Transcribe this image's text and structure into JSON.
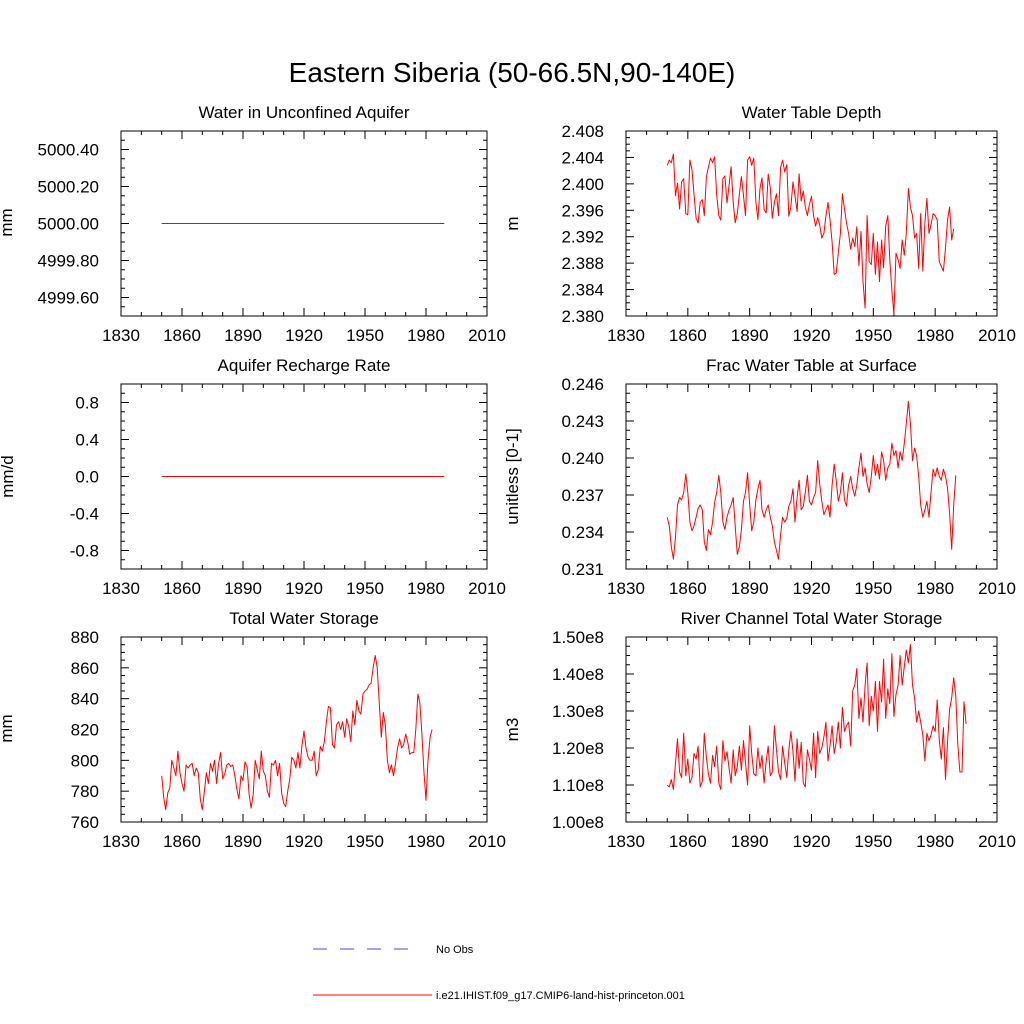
{
  "title": "Eastern Siberia (50-66.5N,90-140E)",
  "legend": {
    "obs_label": "No Obs",
    "obs_color": "#4a4ad0",
    "model_label": "i.e21.IHIST.f09_g17.CMIP6-land-hist-princeton.001",
    "model_color": "#ff0000"
  },
  "chart_data": [
    {
      "type": "line",
      "title": "Water in Unconfined Aquifer",
      "ylabel": "mm",
      "xlim": [
        1830,
        2010
      ],
      "xticks": [
        "1830",
        "1860",
        "1890",
        "1920",
        "1950",
        "1980",
        "2010"
      ],
      "ylim": [
        4999.5,
        5000.5
      ],
      "yticks": [
        "4999.60",
        "4999.80",
        "5000.00",
        "5000.20",
        "5000.40"
      ],
      "x_start": 1850,
      "series": [
        {
          "values": [
            5000.0,
            5000.0,
            5000.0,
            5000.0,
            5000.0,
            5000.0,
            5000.0,
            5000.0,
            5000.0,
            5000.0,
            5000.0,
            5000.0,
            5000.0,
            5000.0,
            5000.0,
            5000.0,
            5000.0,
            5000.0,
            5000.0,
            5000.0,
            5000.0,
            5000.0,
            5000.0,
            5000.0,
            5000.0,
            5000.0,
            5000.0,
            5000.0,
            5000.0,
            5000.0,
            5000.0,
            5000.0,
            5000.0,
            5000.0,
            5000.0,
            5000.0,
            5000.0,
            5000.0,
            5000.0,
            5000.0,
            5000.0,
            5000.0,
            5000.0,
            5000.0,
            5000.0,
            5000.0,
            5000.0,
            5000.0,
            5000.0,
            5000.0,
            5000.0,
            5000.0,
            5000.0,
            5000.0,
            5000.0,
            5000.0,
            5000.0,
            5000.0,
            5000.0,
            5000.0,
            5000.0,
            5000.0,
            5000.0,
            5000.0,
            5000.0,
            5000.0,
            5000.0,
            5000.0,
            5000.0,
            5000.0,
            5000.0,
            5000.0,
            5000.0,
            5000.0,
            5000.0,
            5000.0,
            5000.0,
            5000.0,
            5000.0,
            5000.0,
            5000.0,
            5000.0,
            5000.0,
            5000.0,
            5000.0,
            5000.0,
            5000.0,
            5000.0,
            5000.0,
            5000.0,
            5000.0,
            5000.0,
            5000.0,
            5000.0,
            5000.0,
            5000.0,
            5000.0,
            5000.0,
            5000.0,
            5000.0,
            5000.0,
            5000.0,
            5000.0,
            5000.0,
            5000.0,
            5000.0,
            5000.0,
            5000.0,
            5000.0,
            5000.0,
            5000.0,
            5000.0,
            5000.0,
            5000.0,
            5000.0,
            5000.0,
            5000.0,
            5000.0,
            5000.0,
            5000.0,
            5000.0,
            5000.0,
            5000.0,
            5000.0,
            5000.0,
            5000.0,
            5000.0,
            5000.0,
            5000.0,
            5000.0,
            5000.0,
            5000.0,
            5000.0,
            5000.0,
            5000.0,
            5000.0,
            5000.0,
            5000.0,
            5000.0,
            5000.0
          ]
        }
      ]
    },
    {
      "type": "line",
      "title": "Water Table Depth",
      "ylabel": "m",
      "xlim": [
        1830,
        2010
      ],
      "xticks": [
        "1830",
        "1860",
        "1890",
        "1920",
        "1950",
        "1980",
        "2010"
      ],
      "ylim": [
        2.38,
        2.408
      ],
      "yticks": [
        "2.380",
        "2.384",
        "2.388",
        "2.392",
        "2.396",
        "2.400",
        "2.404",
        "2.408"
      ],
      "x_start": 1850,
      "series": [
        {
          "values": [
            2.4028,
            2.4036,
            2.4032,
            2.4045,
            2.3982,
            2.4001,
            2.3962,
            2.4003,
            2.4008,
            2.3955,
            2.3953,
            2.4036,
            2.4021,
            2.3985,
            2.3948,
            2.3941,
            2.3972,
            2.3976,
            2.3952,
            2.4011,
            2.4025,
            2.4039,
            2.4032,
            2.4041,
            2.3983,
            2.3952,
            2.3945,
            2.4008,
            2.4012,
            2.3971,
            2.3998,
            2.4026,
            2.3972,
            2.3941,
            2.3955,
            2.3985,
            2.4011,
            2.3982,
            2.3952,
            2.4036,
            2.4041,
            2.4028,
            2.4039,
            2.3972,
            2.3946,
            2.3993,
            2.4009,
            2.3961,
            2.3956,
            2.4015,
            2.3994,
            2.3948,
            2.3972,
            2.3985,
            2.3952,
            2.4025,
            2.4036,
            2.4018,
            2.4029,
            2.3951,
            2.3966,
            2.4003,
            2.3982,
            2.3958,
            2.4015,
            2.3974,
            2.3989,
            2.3965,
            2.3952,
            2.3969,
            2.3981,
            2.3952,
            2.3936,
            2.3949,
            2.3938,
            2.3918,
            2.3925,
            2.3951,
            2.3972,
            2.3946,
            2.3912,
            2.3863,
            2.3865,
            2.3895,
            2.3925,
            2.3985,
            2.3962,
            2.3941,
            2.3925,
            2.3901,
            2.3918,
            2.3905,
            2.3935,
            2.3876,
            2.3928,
            2.3852,
            2.3812,
            2.3952,
            2.3882,
            2.3878,
            2.3925,
            2.3863,
            2.3912,
            2.3852,
            2.3915,
            2.3873,
            2.3936,
            2.3952,
            2.3885,
            2.3838,
            2.3803,
            2.3895,
            2.3885,
            2.3872,
            2.3915,
            2.3892,
            2.3925,
            2.3993,
            2.3965,
            2.3952,
            2.3918,
            2.3925,
            2.3872,
            2.3955,
            2.3868,
            2.3942,
            2.3978,
            2.3925,
            2.3938,
            2.3955,
            2.3952,
            2.3945,
            2.3882,
            2.3875,
            2.3868,
            2.3903,
            2.3945,
            2.3965,
            2.3915,
            2.3932
          ]
        }
      ]
    },
    {
      "type": "line",
      "title": "Aquifer Recharge Rate",
      "ylabel": "mm/d",
      "xlim": [
        1830,
        2010
      ],
      "xticks": [
        "1830",
        "1860",
        "1890",
        "1920",
        "1950",
        "1980",
        "2010"
      ],
      "ylim": [
        -1.0,
        1.0
      ],
      "yticks": [
        "-0.8",
        "-0.4",
        "0.0",
        "0.4",
        "0.8"
      ],
      "x_start": 1850,
      "series": [
        {
          "values": [
            0,
            0,
            0,
            0,
            0,
            0,
            0,
            0,
            0,
            0,
            0,
            0,
            0,
            0,
            0,
            0,
            0,
            0,
            0,
            0,
            0,
            0,
            0,
            0,
            0,
            0,
            0,
            0,
            0,
            0,
            0,
            0,
            0,
            0,
            0,
            0,
            0,
            0,
            0,
            0,
            0,
            0,
            0,
            0,
            0,
            0,
            0,
            0,
            0,
            0,
            0,
            0,
            0,
            0,
            0,
            0,
            0,
            0,
            0,
            0,
            0,
            0,
            0,
            0,
            0,
            0,
            0,
            0,
            0,
            0,
            0,
            0,
            0,
            0,
            0,
            0,
            0,
            0,
            0,
            0,
            0,
            0,
            0,
            0,
            0,
            0,
            0,
            0,
            0,
            0,
            0,
            0,
            0,
            0,
            0,
            0,
            0,
            0,
            0,
            0,
            0,
            0,
            0,
            0,
            0,
            0,
            0,
            0,
            0,
            0,
            0,
            0,
            0,
            0,
            0,
            0,
            0,
            0,
            0,
            0,
            0,
            0,
            0,
            0,
            0,
            0,
            0,
            0,
            0,
            0,
            0,
            0,
            0,
            0,
            0,
            0,
            0,
            0,
            0,
            0
          ]
        }
      ]
    },
    {
      "type": "line",
      "title": "Frac Water Table at Surface",
      "ylabel": "unitless [0-1]",
      "xlim": [
        1830,
        2010
      ],
      "xticks": [
        "1830",
        "1860",
        "1890",
        "1920",
        "1950",
        "1980",
        "2010"
      ],
      "ylim": [
        0.231,
        0.246
      ],
      "yticks": [
        "0.231",
        "0.234",
        "0.237",
        "0.240",
        "0.243",
        "0.246"
      ],
      "x_start": 1850,
      "series": [
        {
          "values": [
            0.2352,
            0.2345,
            0.2328,
            0.2318,
            0.2336,
            0.2362,
            0.2368,
            0.2366,
            0.2372,
            0.2387,
            0.2372,
            0.2348,
            0.2341,
            0.2345,
            0.2352,
            0.2359,
            0.2362,
            0.2358,
            0.2332,
            0.2325,
            0.2342,
            0.2338,
            0.2348,
            0.2364,
            0.2372,
            0.2386,
            0.2372,
            0.2348,
            0.2342,
            0.2352,
            0.2358,
            0.2362,
            0.2368,
            0.2345,
            0.2322,
            0.2328,
            0.2342,
            0.2365,
            0.2372,
            0.2388,
            0.2362,
            0.2341,
            0.2348,
            0.2366,
            0.2375,
            0.2382,
            0.2358,
            0.2352,
            0.2358,
            0.2362,
            0.2352,
            0.2345,
            0.2332,
            0.2325,
            0.2318,
            0.2338,
            0.2352,
            0.2348,
            0.2351,
            0.2361,
            0.2365,
            0.2375,
            0.2348,
            0.2368,
            0.2382,
            0.2358,
            0.2361,
            0.2372,
            0.2386,
            0.2365,
            0.2362,
            0.2368,
            0.2372,
            0.2398,
            0.2379,
            0.2365,
            0.2354,
            0.2358,
            0.2362,
            0.2352,
            0.2378,
            0.2395,
            0.2382,
            0.2365,
            0.2372,
            0.2388,
            0.2366,
            0.2361,
            0.2378,
            0.2385,
            0.2375,
            0.2369,
            0.2378,
            0.2392,
            0.2404,
            0.2385,
            0.2392,
            0.2379,
            0.2372,
            0.2385,
            0.2402,
            0.2386,
            0.2395,
            0.2383,
            0.2405,
            0.2398,
            0.2382,
            0.2392,
            0.2395,
            0.2412,
            0.2402,
            0.2406,
            0.2392,
            0.2405,
            0.2398,
            0.2412,
            0.2428,
            0.2446,
            0.2428,
            0.2398,
            0.2408,
            0.2402,
            0.2385,
            0.2362,
            0.2352,
            0.2358,
            0.2365,
            0.2352,
            0.2372,
            0.2391,
            0.2385,
            0.2392,
            0.2385,
            0.2382,
            0.2391,
            0.2385,
            0.2376,
            0.2355,
            0.2326,
            0.2362,
            0.2386
          ]
        }
      ]
    },
    {
      "type": "line",
      "title": "Total Water Storage",
      "ylabel": "mm",
      "xlim": [
        1830,
        2010
      ],
      "xticks": [
        "1830",
        "1860",
        "1890",
        "1920",
        "1950",
        "1980",
        "2010"
      ],
      "ylim": [
        760,
        880
      ],
      "yticks": [
        "760",
        "780",
        "800",
        "820",
        "840",
        "860",
        "880"
      ],
      "x_start": 1850,
      "series": [
        {
          "values": [
            790,
            776,
            768,
            779,
            782,
            800,
            795,
            790,
            806,
            792,
            785,
            780,
            797,
            795,
            797,
            798,
            790,
            795,
            792,
            775,
            768,
            780,
            792,
            785,
            798,
            793,
            800,
            785,
            798,
            805,
            788,
            791,
            797,
            798,
            796,
            797,
            790,
            781,
            775,
            790,
            787,
            799,
            796,
            778,
            769,
            778,
            800,
            794,
            788,
            806,
            793,
            790,
            780,
            776,
            798,
            797,
            800,
            790,
            798,
            779,
            772,
            770,
            780,
            788,
            802,
            800,
            795,
            805,
            795,
            810,
            819,
            808,
            802,
            800,
            800,
            806,
            790,
            794,
            809,
            806,
            812,
            825,
            835,
            834,
            810,
            808,
            823,
            825,
            820,
            825,
            815,
            827,
            822,
            812,
            832,
            823,
            839,
            832,
            830,
            843,
            845,
            846,
            849,
            850,
            860,
            868,
            860,
            838,
            815,
            831,
            823,
            800,
            792,
            797,
            790,
            798,
            808,
            814,
            808,
            810,
            817,
            812,
            804,
            805,
            805,
            820,
            843,
            837,
            817,
            792,
            774,
            800,
            815,
            820
          ]
        }
      ]
    },
    {
      "type": "line",
      "title": "River Channel Total Water Storage",
      "ylabel": "m3",
      "xlim": [
        1830,
        2010
      ],
      "xticks": [
        "1830",
        "1860",
        "1890",
        "1920",
        "1950",
        "1980",
        "2010"
      ],
      "ylim": [
        100000000,
        150000000
      ],
      "yticks": [
        "1.00e8",
        "1.10e8",
        "1.20e8",
        "1.30e8",
        "1.40e8",
        "1.50e8"
      ],
      "x_start": 1850,
      "series": [
        {
          "values": [
            110000000,
            109500000,
            111500000,
            108800000,
            116000000,
            122500000,
            113500000,
            112000000,
            124000000,
            112500000,
            117000000,
            110500000,
            112000000,
            118500000,
            117000000,
            120500000,
            109500000,
            111000000,
            124000000,
            117500000,
            113000000,
            110500000,
            118000000,
            115000000,
            120500000,
            110500000,
            108800000,
            122000000,
            116500000,
            119000000,
            114500000,
            110500000,
            119500000,
            112500000,
            115000000,
            120500000,
            114000000,
            122000000,
            116000000,
            110000000,
            126000000,
            118500000,
            113000000,
            112500000,
            120000000,
            114500000,
            118000000,
            110500000,
            116500000,
            120500000,
            112500000,
            113500000,
            126000000,
            119500000,
            113500000,
            111500000,
            120500000,
            116000000,
            112000000,
            119500000,
            124500000,
            119000000,
            111000000,
            122500000,
            114500000,
            121500000,
            110500000,
            109500000,
            119500000,
            117000000,
            114000000,
            124000000,
            112000000,
            124500000,
            118500000,
            120000000,
            123000000,
            127000000,
            116500000,
            120500000,
            126000000,
            118500000,
            121500000,
            127000000,
            120000000,
            131000000,
            124500000,
            126000000,
            127000000,
            120500000,
            135500000,
            137000000,
            141500000,
            128000000,
            133500000,
            127000000,
            137000000,
            143000000,
            126000000,
            134000000,
            130000000,
            138000000,
            124500000,
            138000000,
            132500000,
            144000000,
            128000000,
            136000000,
            132000000,
            145500000,
            128500000,
            134500000,
            137000000,
            145000000,
            137000000,
            142000000,
            146500000,
            143000000,
            148000000,
            137000000,
            133500000,
            127000000,
            130000000,
            127000000,
            123500000,
            116500000,
            124000000,
            122000000,
            123500000,
            126000000,
            124500000,
            133000000,
            122000000,
            117000000,
            125500000,
            111500000,
            121500000,
            130500000,
            133500000,
            139000000,
            134000000,
            121000000,
            113500000,
            113500000,
            132500000,
            126500000
          ]
        }
      ]
    }
  ]
}
